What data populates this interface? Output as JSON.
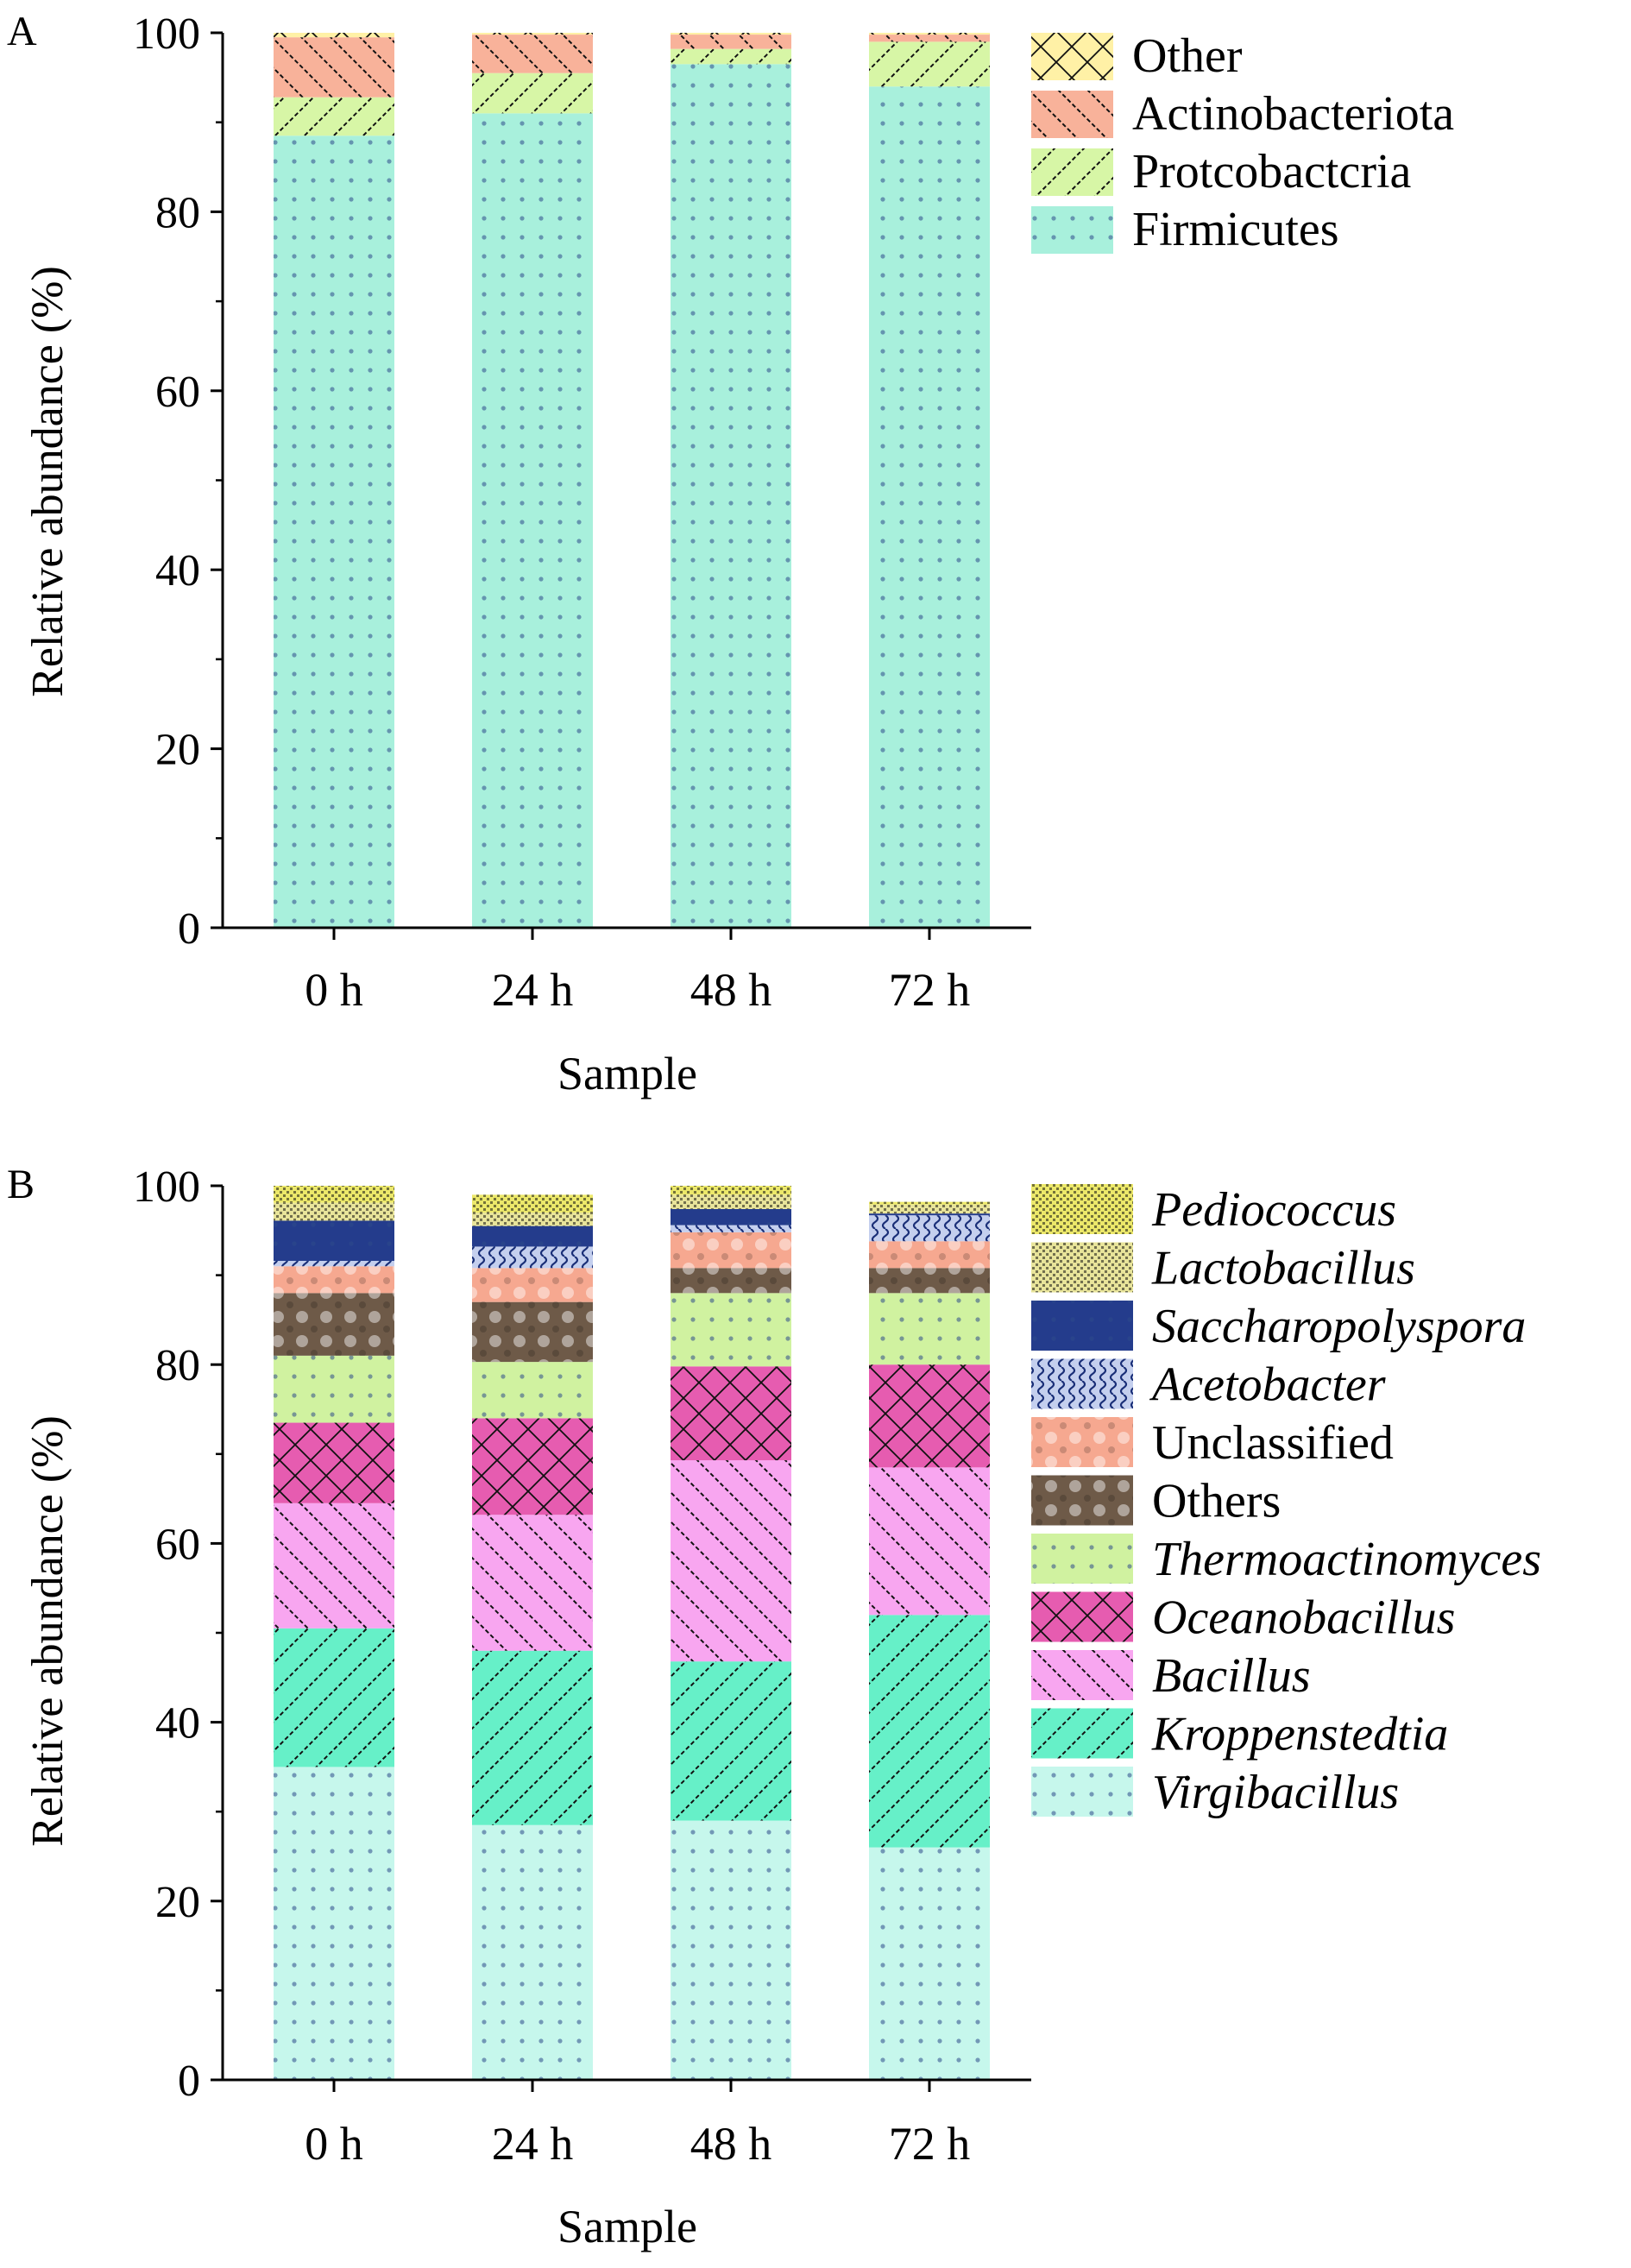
{
  "chart_data": [
    {
      "type": "bar",
      "panel_label": "A",
      "stacked": true,
      "categories": [
        "0 h",
        "24 h",
        "48 h",
        "72 h"
      ],
      "xlabel": "Sample",
      "ylabel": "Relative abundance (%)",
      "ylim": [
        0,
        100
      ],
      "yticks": [
        "0",
        "20",
        "40",
        "60",
        "80",
        "100"
      ],
      "grid": false,
      "legend_position": "right",
      "series": [
        {
          "name": "Firmicutes",
          "values": [
            88.5,
            91.0,
            96.5,
            94.0
          ],
          "color": "#a8f0dc",
          "pattern": "dots"
        },
        {
          "name": "Protcobactcria",
          "values": [
            4.3,
            4.5,
            1.7,
            5.0
          ],
          "color": "#d7f6a6",
          "pattern": "slash"
        },
        {
          "name": "Actinobacteriota",
          "values": [
            6.7,
            4.3,
            1.6,
            0.8
          ],
          "color": "#f8b29a",
          "pattern": "backslash"
        },
        {
          "name": "Other",
          "values": [
            0.5,
            0.2,
            0.2,
            0.2
          ],
          "color": "#fff1a6",
          "pattern": "cross"
        }
      ],
      "legend_order": [
        "Other",
        "Actinobacteriota",
        "Protcobactcria",
        "Firmicutes"
      ]
    },
    {
      "type": "bar",
      "panel_label": "B",
      "stacked": true,
      "categories": [
        "0 h",
        "24 h",
        "48 h",
        "72 h"
      ],
      "xlabel": "Sample",
      "ylabel": "Relative abundance (%)",
      "ylim": [
        0,
        100
      ],
      "yticks": [
        "0",
        "20",
        "40",
        "60",
        "80",
        "100"
      ],
      "grid": false,
      "legend_position": "right",
      "series": [
        {
          "name": "Virgibacillus",
          "italic": true,
          "values": [
            35.0,
            28.5,
            29.0,
            26.0
          ],
          "color": "#c6f7ec",
          "pattern": "dots"
        },
        {
          "name": "Kroppenstedtia",
          "italic": true,
          "values": [
            15.5,
            19.5,
            17.8,
            26.0
          ],
          "color": "#66f0c8",
          "pattern": "slash"
        },
        {
          "name": "Bacillus",
          "italic": true,
          "values": [
            14.0,
            15.2,
            22.5,
            16.5
          ],
          "color": "#f8a6f0",
          "pattern": "backslash"
        },
        {
          "name": "Oceanobacillus",
          "italic": true,
          "values": [
            9.0,
            10.8,
            10.5,
            11.5
          ],
          "color": "#e65cb0",
          "pattern": "cross"
        },
        {
          "name": "Thermoactinomyces",
          "italic": true,
          "values": [
            7.5,
            6.3,
            8.2,
            8.0
          ],
          "color": "#d0f2a0",
          "pattern": "dots"
        },
        {
          "name": "Others",
          "italic": false,
          "values": [
            7.0,
            6.7,
            2.8,
            2.8
          ],
          "color": "#6e5a48",
          "pattern": "blobs"
        },
        {
          "name": "Unclassified",
          "italic": false,
          "values": [
            3.0,
            3.8,
            4.0,
            3.0
          ],
          "color": "#f6a890",
          "pattern": "blobs"
        },
        {
          "name": "Acetobacter",
          "italic": true,
          "values": [
            0.6,
            2.4,
            0.8,
            2.9
          ],
          "color": "#c4cfee",
          "pattern": "waves"
        },
        {
          "name": "Saccharopolyspora",
          "italic": true,
          "values": [
            4.5,
            2.3,
            1.8,
            0.2
          ],
          "color": "#243c8c",
          "pattern": "dots"
        },
        {
          "name": "Lactobacillus",
          "italic": true,
          "values": [
            2.0,
            1.5,
            1.6,
            1.0
          ],
          "color": "#e8e49a",
          "pattern": "dense"
        },
        {
          "name": "Pediococcus",
          "italic": true,
          "values": [
            1.9,
            2.0,
            1.0,
            0.3
          ],
          "color": "#ece86a",
          "pattern": "dense"
        }
      ],
      "legend_order": [
        "Pediococcus",
        "Lactobacillus",
        "Saccharopolyspora",
        "Acetobacter",
        "Unclassified",
        "Others",
        "Thermoactinomyces",
        "Oceanobacillus",
        "Bacillus",
        "Kroppenstedtia",
        "Virgibacillus"
      ]
    }
  ]
}
